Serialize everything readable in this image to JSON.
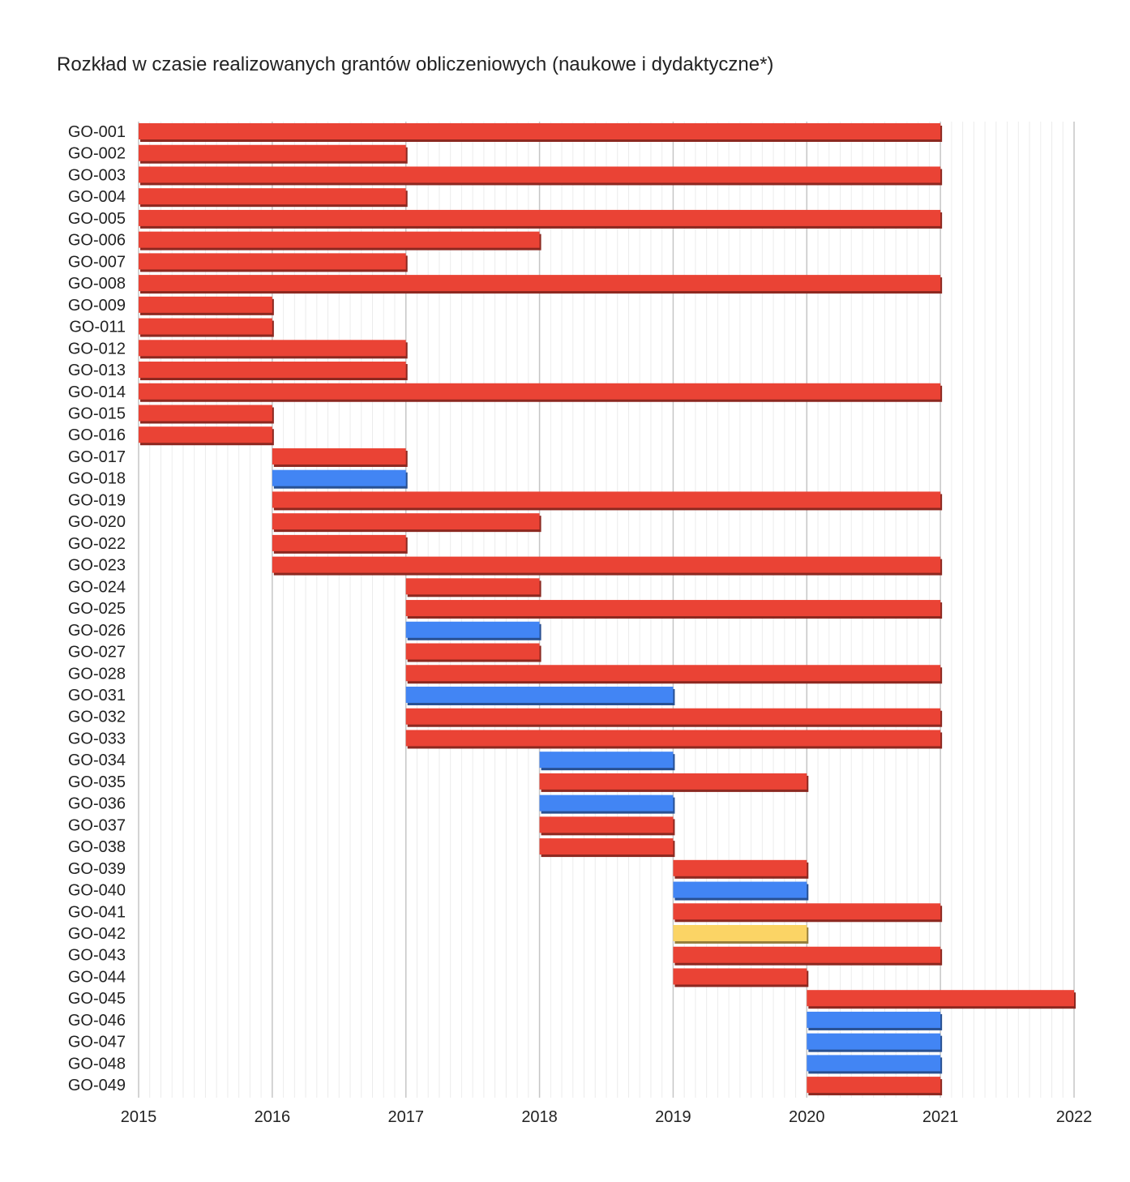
{
  "chart_data": {
    "type": "bar",
    "subtype": "gantt",
    "title": "Rozkład w czasie realizowanych grantów obliczeniowych (naukowe i dydaktyczne*)",
    "xlabel": "",
    "ylabel": "",
    "xlim": [
      2015,
      2022
    ],
    "x_ticks": [
      "2015",
      "2016",
      "2017",
      "2018",
      "2019",
      "2020",
      "2021",
      "2022"
    ],
    "grid": true,
    "legend": "none",
    "colors": {
      "red": "#ea4335",
      "blue": "#4285f4",
      "yellow": "#fbd465"
    },
    "grants": [
      {
        "label": "GO-001",
        "start": 2015,
        "end": 2021,
        "color": "red"
      },
      {
        "label": "GO-002",
        "start": 2015,
        "end": 2017,
        "color": "red"
      },
      {
        "label": "GO-003",
        "start": 2015,
        "end": 2021,
        "color": "red"
      },
      {
        "label": "GO-004",
        "start": 2015,
        "end": 2017,
        "color": "red"
      },
      {
        "label": "GO-005",
        "start": 2015,
        "end": 2021,
        "color": "red"
      },
      {
        "label": "GO-006",
        "start": 2015,
        "end": 2018,
        "color": "red"
      },
      {
        "label": "GO-007",
        "start": 2015,
        "end": 2017,
        "color": "red"
      },
      {
        "label": "GO-008",
        "start": 2015,
        "end": 2021,
        "color": "red"
      },
      {
        "label": "GO-009",
        "start": 2015,
        "end": 2016,
        "color": "red"
      },
      {
        "label": "GO-011",
        "start": 2015,
        "end": 2016,
        "color": "red"
      },
      {
        "label": "GO-012",
        "start": 2015,
        "end": 2017,
        "color": "red"
      },
      {
        "label": "GO-013",
        "start": 2015,
        "end": 2017,
        "color": "red"
      },
      {
        "label": "GO-014",
        "start": 2015,
        "end": 2021,
        "color": "red"
      },
      {
        "label": "GO-015",
        "start": 2015,
        "end": 2016,
        "color": "red"
      },
      {
        "label": "GO-016",
        "start": 2015,
        "end": 2016,
        "color": "red"
      },
      {
        "label": "GO-017",
        "start": 2016,
        "end": 2017,
        "color": "red"
      },
      {
        "label": "GO-018",
        "start": 2016,
        "end": 2017,
        "color": "blue"
      },
      {
        "label": "GO-019",
        "start": 2016,
        "end": 2021,
        "color": "red"
      },
      {
        "label": "GO-020",
        "start": 2016,
        "end": 2018,
        "color": "red"
      },
      {
        "label": "GO-022",
        "start": 2016,
        "end": 2017,
        "color": "red"
      },
      {
        "label": "GO-023",
        "start": 2016,
        "end": 2021,
        "color": "red"
      },
      {
        "label": "GO-024",
        "start": 2017,
        "end": 2018,
        "color": "red"
      },
      {
        "label": "GO-025",
        "start": 2017,
        "end": 2021,
        "color": "red"
      },
      {
        "label": "GO-026",
        "start": 2017,
        "end": 2018,
        "color": "blue"
      },
      {
        "label": "GO-027",
        "start": 2017,
        "end": 2018,
        "color": "red"
      },
      {
        "label": "GO-028",
        "start": 2017,
        "end": 2021,
        "color": "red"
      },
      {
        "label": "GO-031",
        "start": 2017,
        "end": 2019,
        "color": "blue"
      },
      {
        "label": "GO-032",
        "start": 2017,
        "end": 2021,
        "color": "red"
      },
      {
        "label": "GO-033",
        "start": 2017,
        "end": 2021,
        "color": "red"
      },
      {
        "label": "GO-034",
        "start": 2018,
        "end": 2019,
        "color": "blue"
      },
      {
        "label": "GO-035",
        "start": 2018,
        "end": 2020,
        "color": "red"
      },
      {
        "label": "GO-036",
        "start": 2018,
        "end": 2019,
        "color": "blue"
      },
      {
        "label": "GO-037",
        "start": 2018,
        "end": 2019,
        "color": "red"
      },
      {
        "label": "GO-038",
        "start": 2018,
        "end": 2019,
        "color": "red"
      },
      {
        "label": "GO-039",
        "start": 2019,
        "end": 2020,
        "color": "red"
      },
      {
        "label": "GO-040",
        "start": 2019,
        "end": 2020,
        "color": "blue"
      },
      {
        "label": "GO-041",
        "start": 2019,
        "end": 2021,
        "color": "red"
      },
      {
        "label": "GO-042",
        "start": 2019,
        "end": 2020,
        "color": "yellow"
      },
      {
        "label": "GO-043",
        "start": 2019,
        "end": 2021,
        "color": "red"
      },
      {
        "label": "GO-044",
        "start": 2019,
        "end": 2020,
        "color": "red"
      },
      {
        "label": "GO-045",
        "start": 2020,
        "end": 2022,
        "color": "red"
      },
      {
        "label": "GO-046",
        "start": 2020,
        "end": 2021,
        "color": "blue"
      },
      {
        "label": "GO-047",
        "start": 2020,
        "end": 2021,
        "color": "blue"
      },
      {
        "label": "GO-048",
        "start": 2020,
        "end": 2021,
        "color": "blue"
      },
      {
        "label": "GO-049",
        "start": 2020,
        "end": 2021,
        "color": "red"
      }
    ]
  }
}
